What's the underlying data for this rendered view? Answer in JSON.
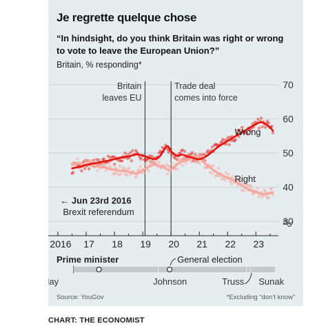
{
  "title": "Je regrette quelque chose",
  "question": "“In hindsight, do you think Britain was right or wrong to vote to leave the European Union?”",
  "subtitle": "Britain, % responding*",
  "source": "Source: YouGov",
  "footnote": "*Excluding “don’t know”",
  "credit": "CHART: THE ECONOMIST",
  "colors": {
    "wrong": "#e3120b",
    "right": "#f5a9a0",
    "pm_bar": "#c3c9cc",
    "background": "#e5edf0"
  },
  "chart_data": {
    "type": "line",
    "x_range": [
      2016.0,
      2023.7
    ],
    "ylim": [
      27,
      73
    ],
    "y_ticks": [
      30,
      40,
      50,
      60,
      70
    ],
    "x_ticks": [
      2016,
      2017,
      2018,
      2019,
      2020,
      2021,
      2022,
      2023
    ],
    "x_tick_labels": [
      "2016",
      "17",
      "18",
      "19",
      "20",
      "21",
      "22",
      "23"
    ],
    "axis_side": "right",
    "axis_break": true,
    "series": [
      {
        "name": "Wrong",
        "color": "#e3120b",
        "points": [
          [
            2016.5,
            45.5
          ],
          [
            2016.8,
            46.0
          ],
          [
            2017.0,
            46.5
          ],
          [
            2017.3,
            47.0
          ],
          [
            2017.6,
            47.5
          ],
          [
            2017.9,
            48.0
          ],
          [
            2018.2,
            48.6
          ],
          [
            2018.5,
            49.0
          ],
          [
            2018.8,
            49.6
          ],
          [
            2019.1,
            49.0
          ],
          [
            2019.4,
            48.2
          ],
          [
            2019.6,
            49.0
          ],
          [
            2019.85,
            52.0
          ],
          [
            2020.0,
            50.5
          ],
          [
            2020.2,
            49.2
          ],
          [
            2020.4,
            49.5
          ],
          [
            2020.6,
            49.0
          ],
          [
            2020.8,
            48.5
          ],
          [
            2021.0,
            48.2
          ],
          [
            2021.2,
            48.8
          ],
          [
            2021.4,
            50.0
          ],
          [
            2021.7,
            52.0
          ],
          [
            2022.0,
            53.5
          ],
          [
            2022.3,
            55.0
          ],
          [
            2022.6,
            56.5
          ],
          [
            2022.9,
            58.0
          ],
          [
            2023.2,
            59.0
          ],
          [
            2023.5,
            57.5
          ],
          [
            2023.6,
            56.5
          ]
        ]
      },
      {
        "name": "Right",
        "color": "#f5a9a0",
        "points": [
          [
            2016.5,
            46.5
          ],
          [
            2016.8,
            47.0
          ],
          [
            2017.0,
            46.5
          ],
          [
            2017.3,
            46.2
          ],
          [
            2017.6,
            45.8
          ],
          [
            2017.9,
            45.2
          ],
          [
            2018.2,
            44.8
          ],
          [
            2018.5,
            44.5
          ],
          [
            2018.8,
            44.0
          ],
          [
            2019.1,
            45.5
          ],
          [
            2019.4,
            46.5
          ],
          [
            2019.7,
            46.0
          ],
          [
            2019.95,
            45.0
          ],
          [
            2020.2,
            46.5
          ],
          [
            2020.4,
            47.5
          ],
          [
            2020.6,
            48.0
          ],
          [
            2020.8,
            49.0
          ],
          [
            2021.0,
            48.5
          ],
          [
            2021.2,
            47.0
          ],
          [
            2021.5,
            45.0
          ],
          [
            2021.8,
            43.5
          ],
          [
            2022.1,
            42.5
          ],
          [
            2022.4,
            41.0
          ],
          [
            2022.7,
            39.5
          ],
          [
            2023.0,
            38.5
          ],
          [
            2023.3,
            38.0
          ],
          [
            2023.6,
            38.5
          ]
        ]
      }
    ],
    "events": [
      {
        "x": 2019.08,
        "label_lines": [
          "Britain",
          "leaves EU"
        ],
        "align": "right"
      },
      {
        "x": 2020.0,
        "label_lines": [
          "Trade deal",
          "comes into force"
        ],
        "align": "left"
      }
    ],
    "annotations": [
      {
        "text": "Wrong",
        "x": 2022.25,
        "y": 55.2
      },
      {
        "text": "Right",
        "x": 2022.25,
        "y": 41.5
      },
      {
        "text": "← Jun 23rd 2016",
        "x": 2016.08,
        "y": 35.2,
        "bold": true
      },
      {
        "text": "Brexit referendum",
        "x": 2016.18,
        "y": 31.8
      }
    ]
  },
  "pm": {
    "heading": "Prime minister",
    "election_label": "General election",
    "election_x": 2019.95,
    "segments": [
      {
        "name": "May",
        "start": 2016.55,
        "end": 2019.56
      },
      {
        "name": "Johnson",
        "start": 2019.56,
        "end": 2022.68
      },
      {
        "name": "Truss",
        "start": 2022.68,
        "end": 2022.82
      },
      {
        "name": "Sunak",
        "start": 2022.82,
        "end": 2023.7
      }
    ]
  }
}
